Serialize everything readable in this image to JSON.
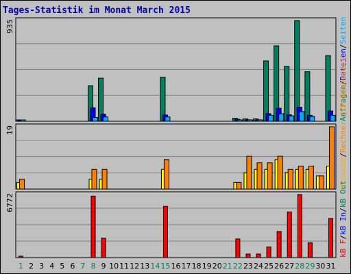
{
  "chart_data": {
    "title": "Tages-Statistik im Monat March 2015",
    "type": "bar",
    "categories": [
      "1",
      "2",
      "3",
      "4",
      "5",
      "6",
      "7",
      "8",
      "9",
      "10",
      "11",
      "12",
      "13",
      "14",
      "15",
      "16",
      "17",
      "18",
      "19",
      "20",
      "21",
      "22",
      "23",
      "24",
      "25",
      "26",
      "27",
      "28",
      "29",
      "30",
      "31"
    ],
    "weekend_days": [
      "1",
      "7",
      "8",
      "14",
      "15",
      "21",
      "22",
      "28",
      "29"
    ],
    "panels": [
      {
        "name": "requests",
        "ymax_label": "935",
        "ymax": 935,
        "series": [
          {
            "name": "Anfragen",
            "color": "#008060",
            "values": [
              12,
              0,
              0,
              0,
              0,
              0,
              0,
              330,
              400,
              0,
              0,
              0,
              0,
              0,
              410,
              0,
              0,
              0,
              0,
              0,
              0,
              28,
              22,
              22,
              560,
              700,
              510,
              935,
              460,
              0,
              610
            ]
          },
          {
            "name": "Dateien",
            "color": "#0000ff",
            "values": [
              8,
              0,
              0,
              0,
              0,
              0,
              0,
              125,
              65,
              0,
              0,
              0,
              0,
              0,
              58,
              0,
              0,
              0,
              0,
              0,
              0,
              18,
              14,
              14,
              70,
              120,
              60,
              130,
              55,
              0,
              95
            ]
          },
          {
            "name": "Seiten",
            "color": "#00aaff",
            "values": [
              5,
              0,
              0,
              0,
              0,
              0,
              0,
              35,
              40,
              0,
              0,
              0,
              0,
              0,
              40,
              0,
              0,
              0,
              0,
              0,
              0,
              12,
              10,
              10,
              55,
              70,
              50,
              90,
              45,
              0,
              55
            ]
          }
        ]
      },
      {
        "name": "hosts",
        "ymax_label": "19",
        "ymax": 19,
        "series": [
          {
            "name": "Besuche",
            "color": "#ffff00",
            "values": [
              2,
              0,
              0,
              0,
              0,
              0,
              0,
              3,
              3,
              0,
              0,
              0,
              0,
              0,
              6,
              0,
              0,
              0,
              0,
              0,
              0,
              2,
              5,
              6,
              6,
              9,
              5,
              6,
              6,
              4,
              7
            ]
          },
          {
            "name": "Rechner (IP-Adressen)",
            "color": "#ff8000",
            "values": [
              3,
              0,
              0,
              0,
              0,
              0,
              0,
              6,
              6,
              0,
              0,
              0,
              0,
              0,
              9,
              0,
              0,
              0,
              0,
              0,
              0,
              2,
              10,
              8,
              8,
              10,
              6,
              7,
              7,
              4,
              19
            ]
          }
        ]
      },
      {
        "name": "traffic",
        "ymax_label": "6772",
        "ymax": 6772,
        "series": [
          {
            "name": "kB F",
            "color": "#ff0000",
            "values": [
              150,
              0,
              0,
              0,
              0,
              0,
              0,
              6600,
              2100,
              0,
              0,
              0,
              0,
              0,
              5500,
              0,
              0,
              0,
              0,
              0,
              0,
              2000,
              380,
              380,
              1150,
              2800,
              4900,
              6772,
              1600,
              0,
              4200
            ]
          }
        ]
      }
    ],
    "right_labels": {
      "top": [
        "Anfragen",
        "/",
        "Dateien",
        "/",
        "Seiten"
      ],
      "mid": [
        "Besuche",
        "/",
        "Rechner (IP-Adressen)"
      ],
      "bot": [
        "kB F",
        "/",
        "kB In",
        "/",
        "kB Out"
      ]
    },
    "colors": {
      "background": "#c0c0c0",
      "title": "#0000aa",
      "weekend_tick": "#008060",
      "grid": "#808080"
    }
  }
}
